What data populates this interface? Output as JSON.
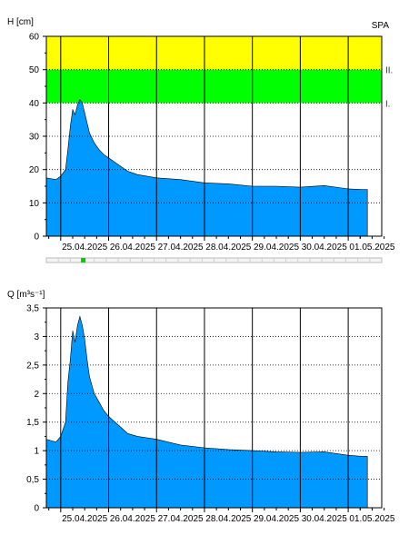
{
  "station_label": "SPA",
  "x_ticks": [
    "25.04.2025",
    "26.04.2025",
    "27.04.2025",
    "28.04.2025",
    "29.04.2025",
    "30.04.2025",
    "01.05.2025"
  ],
  "colors": {
    "area": "#0099ff",
    "band_low": "#00ff00",
    "band_high": "#ffff00",
    "timeline_marker": "#00cc00"
  },
  "timeline": {
    "marker_position": 0.11
  },
  "chart_data": [
    {
      "type": "area",
      "ylabel": "H [cm]",
      "xlabel": "",
      "x_unit": "days since 25.04.2025 00:00",
      "xlim": [
        -0.3,
        6.7
      ],
      "ylim": [
        0,
        60
      ],
      "y_ticks": [
        0,
        10,
        20,
        30,
        40,
        50,
        60
      ],
      "y_tick_labels": [
        "0",
        "10",
        "20",
        "30",
        "40",
        "50",
        "60"
      ],
      "grid": true,
      "bands": [
        {
          "from": 40,
          "to": 50,
          "label": "I.",
          "color": "#00ff00"
        },
        {
          "from": 50,
          "to": 60,
          "label": "II.",
          "color": "#ffff00"
        }
      ],
      "series": [
        {
          "values": [
            [
              -0.3,
              17.5
            ],
            [
              -0.1,
              17
            ],
            [
              0.0,
              18
            ],
            [
              0.1,
              20
            ],
            [
              0.15,
              26
            ],
            [
              0.2,
              33
            ],
            [
              0.25,
              38
            ],
            [
              0.3,
              36.5
            ],
            [
              0.35,
              39.5
            ],
            [
              0.4,
              41
            ],
            [
              0.45,
              40
            ],
            [
              0.5,
              37
            ],
            [
              0.55,
              34
            ],
            [
              0.6,
              31
            ],
            [
              0.7,
              28
            ],
            [
              0.8,
              26
            ],
            [
              0.9,
              24.5
            ],
            [
              1.0,
              23.5
            ],
            [
              1.2,
              21.5
            ],
            [
              1.4,
              19.5
            ],
            [
              1.6,
              18.5
            ],
            [
              2.0,
              17.5
            ],
            [
              2.5,
              17
            ],
            [
              3.0,
              16
            ],
            [
              3.5,
              15.7
            ],
            [
              4.0,
              15
            ],
            [
              4.5,
              15
            ],
            [
              5.0,
              14.7
            ],
            [
              5.5,
              15.2
            ],
            [
              6.0,
              14.2
            ],
            [
              6.3,
              14
            ],
            [
              6.4,
              14
            ]
          ]
        }
      ]
    },
    {
      "type": "area",
      "ylabel": "Q [m³s⁻¹]",
      "xlabel": "",
      "x_unit": "days since 25.04.2025 00:00",
      "xlim": [
        -0.3,
        6.7
      ],
      "ylim": [
        0,
        3.5
      ],
      "y_ticks": [
        0,
        0.5,
        1,
        1.5,
        2,
        2.5,
        3,
        3.5
      ],
      "y_tick_labels": [
        "0",
        "0,5",
        "1",
        "1,5",
        "2",
        "2,5",
        "3",
        "3,5"
      ],
      "grid": true,
      "bands": [],
      "series": [
        {
          "values": [
            [
              -0.3,
              1.2
            ],
            [
              -0.1,
              1.15
            ],
            [
              0.0,
              1.25
            ],
            [
              0.1,
              1.5
            ],
            [
              0.15,
              2.2
            ],
            [
              0.2,
              2.6
            ],
            [
              0.25,
              3.1
            ],
            [
              0.3,
              2.9
            ],
            [
              0.35,
              3.2
            ],
            [
              0.4,
              3.35
            ],
            [
              0.45,
              3.2
            ],
            [
              0.5,
              2.95
            ],
            [
              0.55,
              2.6
            ],
            [
              0.6,
              2.3
            ],
            [
              0.7,
              2.0
            ],
            [
              0.8,
              1.85
            ],
            [
              0.9,
              1.7
            ],
            [
              1.0,
              1.6
            ],
            [
              1.2,
              1.45
            ],
            [
              1.4,
              1.3
            ],
            [
              1.6,
              1.25
            ],
            [
              2.0,
              1.2
            ],
            [
              2.5,
              1.1
            ],
            [
              3.0,
              1.05
            ],
            [
              3.5,
              1.02
            ],
            [
              4.0,
              1.0
            ],
            [
              4.5,
              0.98
            ],
            [
              5.0,
              0.97
            ],
            [
              5.5,
              0.98
            ],
            [
              6.0,
              0.92
            ],
            [
              6.3,
              0.9
            ],
            [
              6.4,
              0.9
            ]
          ]
        }
      ]
    }
  ]
}
